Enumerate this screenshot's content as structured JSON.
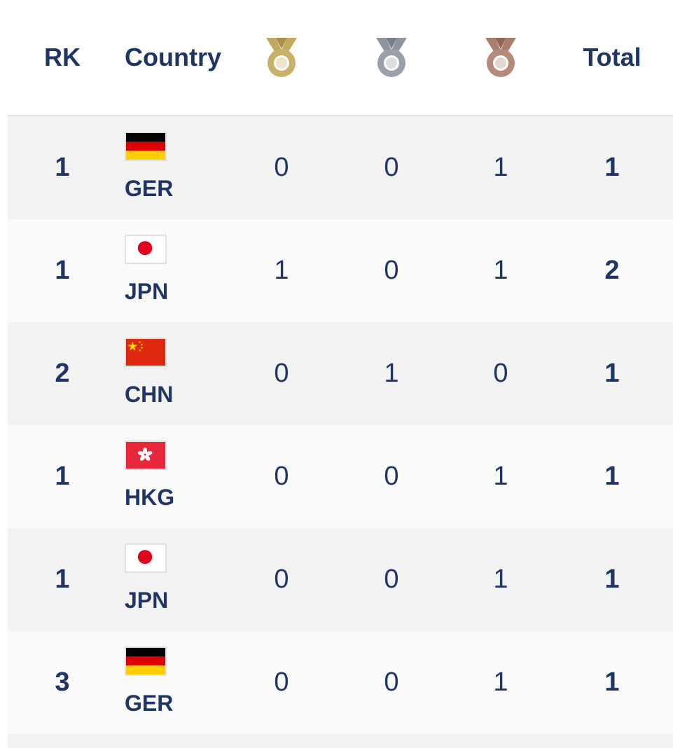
{
  "header": {
    "rank_label": "RK",
    "country_label": "Country",
    "gold_icon": "gold-medal-icon",
    "silver_icon": "silver-medal-icon",
    "bronze_icon": "bronze-medal-icon",
    "total_label": "Total"
  },
  "colors": {
    "text": "#1f3566",
    "gold": "#c9b16a",
    "silver": "#9aa0aa",
    "bronze": "#b58a78",
    "row_alt": "#f2f2f2"
  },
  "rows": [
    {
      "rank": "1",
      "flag": "germany-flag-icon",
      "code": "GER",
      "gold": "0",
      "silver": "0",
      "bronze": "1",
      "total": "1"
    },
    {
      "rank": "1",
      "flag": "japan-flag-icon",
      "code": "JPN",
      "gold": "1",
      "silver": "0",
      "bronze": "1",
      "total": "2"
    },
    {
      "rank": "2",
      "flag": "china-flag-icon",
      "code": "CHN",
      "gold": "0",
      "silver": "1",
      "bronze": "0",
      "total": "1"
    },
    {
      "rank": "1",
      "flag": "hong-kong-flag-icon",
      "code": "HKG",
      "gold": "0",
      "silver": "0",
      "bronze": "1",
      "total": "1"
    },
    {
      "rank": "1",
      "flag": "japan-flag-icon",
      "code": "JPN",
      "gold": "0",
      "silver": "0",
      "bronze": "1",
      "total": "1"
    },
    {
      "rank": "3",
      "flag": "germany-flag-icon",
      "code": "GER",
      "gold": "0",
      "silver": "0",
      "bronze": "1",
      "total": "1"
    }
  ]
}
